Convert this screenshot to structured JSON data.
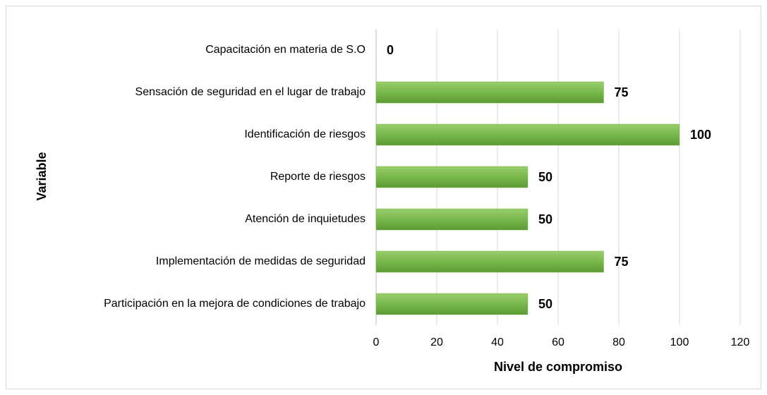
{
  "chart_data": {
    "type": "barh",
    "categories": [
      "Capacitación en materia de S.O",
      "Sensación de seguridad en el lugar de trabajo",
      "Identificación de riesgos",
      "Reporte de riesgos",
      "Atención de inquietudes",
      "Implementación de medidas de seguridad",
      "Participación en la mejora de  condiciones de trabajo"
    ],
    "values": [
      0,
      75,
      100,
      50,
      50,
      75,
      50
    ],
    "color": "#77b84a",
    "xlim": [
      0,
      120
    ],
    "xticks": [
      0,
      20,
      40,
      60,
      80,
      100,
      120
    ],
    "grid": true,
    "xlabel": "Nivel de compromiso",
    "ylabel": "Variable"
  }
}
